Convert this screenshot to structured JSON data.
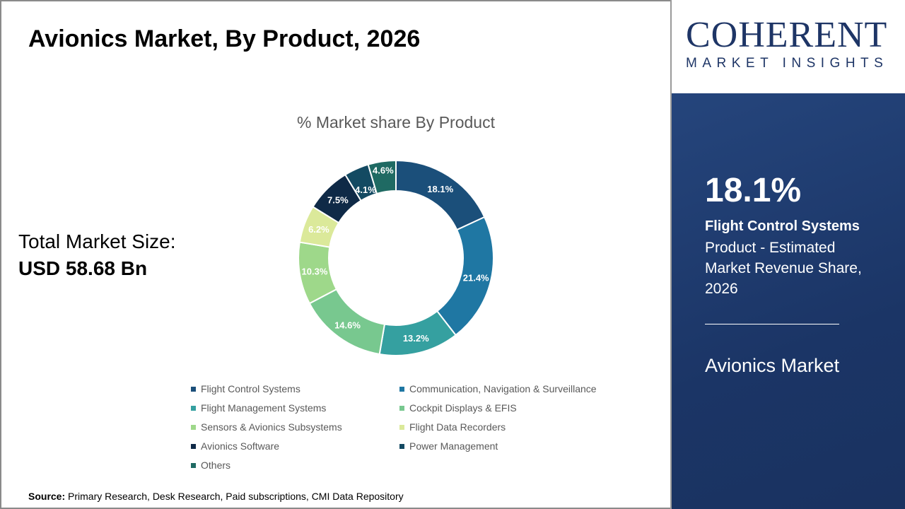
{
  "title": "Avionics Market, By Product, 2026",
  "total": {
    "label": "Total Market Size:",
    "value": "USD 58.68 Bn"
  },
  "source": {
    "label": "Source:",
    "text": " Primary Research, Desk Research, Paid subscriptions, CMI Data Repository"
  },
  "logo": {
    "top": "COHERENT",
    "bottom": "MARKET INSIGHTS"
  },
  "panel": {
    "kpi": "18.1%",
    "name": "Flight Control Systems",
    "desc": "Product - Estimated Market Revenue Share, 2026",
    "market": "Avionics Market"
  },
  "chart_data": {
    "type": "pie",
    "variant": "donut",
    "title": "% Market share By Product",
    "categories": [
      "Flight Control Systems",
      "Communication, Navigation & Surveillance",
      "Flight Management Systems",
      "Cockpit Displays & EFIS",
      "Sensors & Avionics Subsystems",
      "Flight Data Recorders",
      "Avionics Software",
      "Power Management",
      "Others"
    ],
    "values": [
      18.1,
      21.4,
      13.2,
      14.6,
      10.3,
      6.2,
      7.5,
      4.1,
      4.6
    ],
    "labels": [
      "18.1%",
      "21.4%",
      "13.2%",
      "14.6%",
      "10.3%",
      "6.2%",
      "7.5%",
      "4.1%",
      "4.6%"
    ],
    "colors": [
      "#1b4f7a",
      "#1f77a3",
      "#35a0a0",
      "#78c88f",
      "#9ed88a",
      "#dbe99a",
      "#0f2a47",
      "#134a62",
      "#1f6a63"
    ],
    "legend": "bottom"
  }
}
